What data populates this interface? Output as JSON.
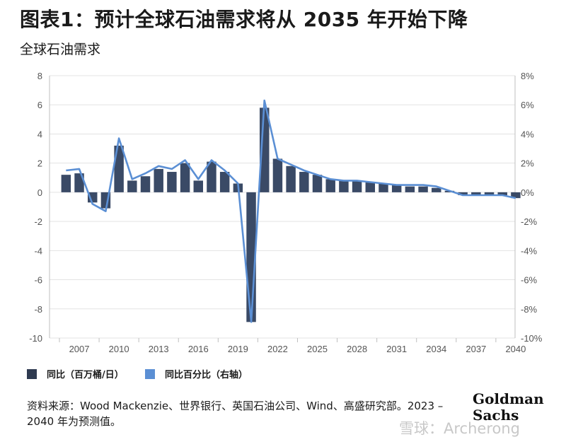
{
  "title": "图表1：预计全球石油需求将从 2035 年开始下降",
  "subtitle": "全球石油需求",
  "chart_data": {
    "type": "bar+line",
    "title": "全球石油需求",
    "left_axis": {
      "ylim": [
        -10,
        8
      ],
      "ticks": [
        "8",
        "6",
        "4",
        "2",
        "0",
        "-2",
        "-4",
        "-6",
        "-8",
        "-10"
      ],
      "tick_values": [
        8,
        6,
        4,
        2,
        0,
        -2,
        -4,
        -6,
        -8,
        -10
      ]
    },
    "right_axis": {
      "ylim": [
        -10,
        8
      ],
      "ticks": [
        "8%",
        "6%",
        "4%",
        "2%",
        "0%",
        "-2%",
        "-4%",
        "-6%",
        "-8%",
        "-10%"
      ],
      "tick_values": [
        8,
        6,
        4,
        2,
        0,
        -2,
        -4,
        -6,
        -8,
        -10
      ]
    },
    "categories": [
      2006,
      2007,
      2008,
      2009,
      2010,
      2011,
      2012,
      2013,
      2014,
      2015,
      2016,
      2017,
      2018,
      2019,
      2020,
      2021,
      2022,
      2023,
      2024,
      2025,
      2026,
      2027,
      2028,
      2029,
      2030,
      2031,
      2032,
      2033,
      2034,
      2035,
      2036,
      2037,
      2038,
      2039,
      2040
    ],
    "x_tick_labels": [
      "2007",
      "2010",
      "2013",
      "2016",
      "2019",
      "2022",
      "2025",
      "2028",
      "2031",
      "2034",
      "2037",
      "2040"
    ],
    "x_tick_years": [
      2007,
      2010,
      2013,
      2016,
      2019,
      2022,
      2025,
      2028,
      2031,
      2034,
      2037,
      2040
    ],
    "series": [
      {
        "name": "同比（百万桶/日）",
        "kind": "bar",
        "axis": "left",
        "color": "#3a4a66",
        "values": [
          1.2,
          1.3,
          -0.7,
          -1.1,
          3.2,
          0.8,
          1.1,
          1.6,
          1.4,
          2.0,
          0.8,
          2.1,
          1.4,
          0.6,
          -8.9,
          5.8,
          2.3,
          1.8,
          1.4,
          1.2,
          0.9,
          0.8,
          0.8,
          0.7,
          0.6,
          0.5,
          0.4,
          0.4,
          0.3,
          0.1,
          -0.2,
          -0.2,
          -0.2,
          -0.2,
          -0.4
        ]
      },
      {
        "name": "同比百分比（右轴）",
        "kind": "line",
        "axis": "right",
        "color": "#5b8fd4",
        "values": [
          1.5,
          1.6,
          -0.8,
          -1.3,
          3.7,
          0.9,
          1.3,
          1.8,
          1.6,
          2.2,
          0.9,
          2.2,
          1.5,
          0.6,
          -8.9,
          6.3,
          2.3,
          1.9,
          1.5,
          1.2,
          0.9,
          0.8,
          0.8,
          0.7,
          0.6,
          0.5,
          0.5,
          0.5,
          0.4,
          0.1,
          -0.2,
          -0.2,
          -0.2,
          -0.2,
          -0.4
        ]
      }
    ],
    "legend": [
      {
        "label": "同比（百万桶/日）",
        "color": "#2e3a50"
      },
      {
        "label": "同比百分比（右轴）",
        "color": "#5b8fd4"
      }
    ]
  },
  "source_text": "资料来源：Wood Mackenzie、世界银行、英国石油公司、Wind、高盛研究部。2023 – 2040 年为预测值。",
  "logo": {
    "line1": "Goldman",
    "line2": "Sachs"
  },
  "watermark": "雪球：Archerong"
}
